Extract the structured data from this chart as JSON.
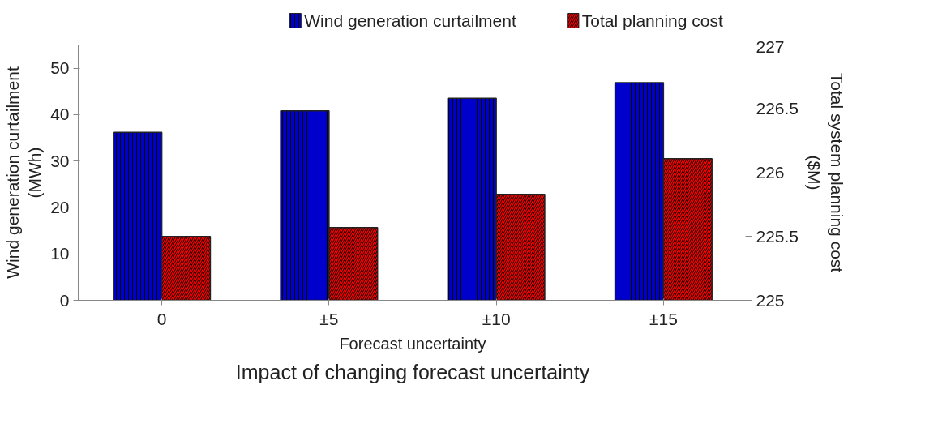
{
  "chart_data": {
    "type": "bar",
    "title": "Impact of changing forecast uncertainty",
    "xlabel": "Forecast uncertainty",
    "ylabel": "Wind generation curtailment (MWh)",
    "y2label": "Total system planning cost ($M)",
    "categories": [
      "0",
      "±5",
      "±10",
      "±15"
    ],
    "series": [
      {
        "name": "Wind generation curtailment",
        "color": "#0000cc",
        "values": [
          36.2,
          40.8,
          43.5,
          46.9
        ]
      },
      {
        "name": "Total planning cost",
        "color": "#ff0000",
        "axis": "y2",
        "values": [
          225.5,
          225.57,
          225.83,
          226.11
        ]
      }
    ],
    "ylim": [
      0,
      55
    ],
    "yticks": [
      0,
      10,
      20,
      30,
      40,
      50
    ],
    "y2lim": [
      225,
      227
    ],
    "y2ticks": [
      225,
      {
        "value": 225.5,
        "label": "225.5"
      },
      226,
      {
        "value": 226.5,
        "label": "226.5"
      },
      227
    ],
    "grid": false,
    "legend": "top"
  }
}
